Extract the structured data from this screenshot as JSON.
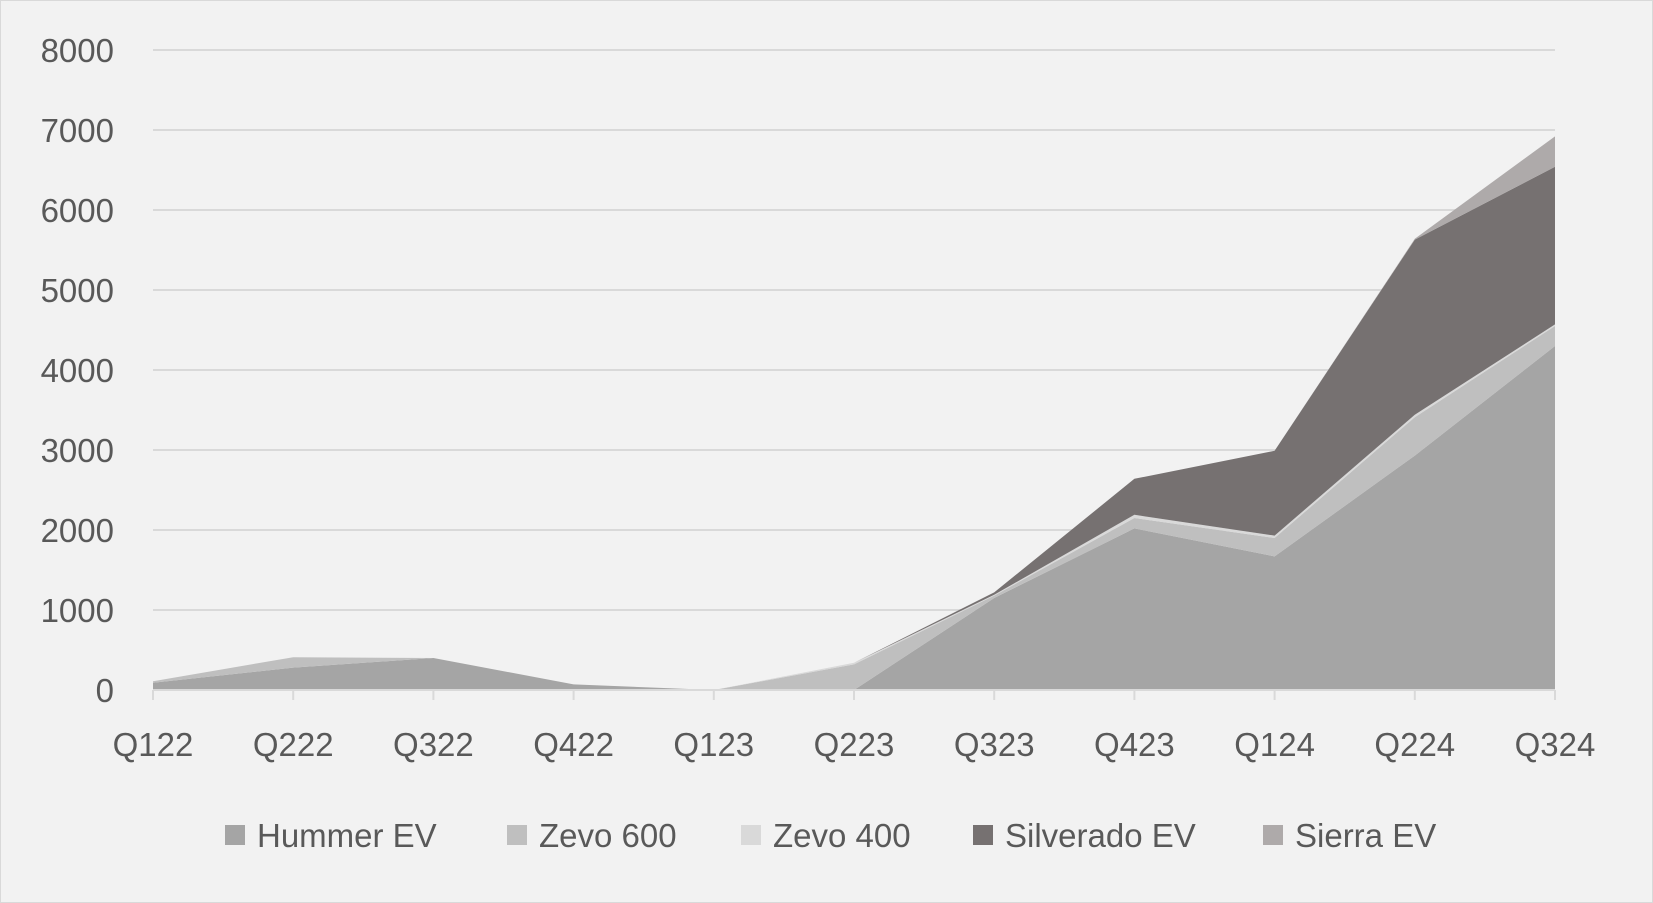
{
  "chart_data": {
    "type": "area",
    "stacked": true,
    "title": "",
    "xlabel": "",
    "ylabel": "",
    "categories": [
      "Q122",
      "Q222",
      "Q322",
      "Q422",
      "Q123",
      "Q223",
      "Q323",
      "Q423",
      "Q124",
      "Q224",
      "Q324"
    ],
    "ylim": [
      0,
      8000
    ],
    "yticks": [
      0,
      1000,
      2000,
      3000,
      4000,
      5000,
      6000,
      7000,
      8000
    ],
    "grid": true,
    "legend": "bottom",
    "series": [
      {
        "name": "Hummer EV",
        "color": "#a5a5a5",
        "values": [
          90,
          280,
          400,
          70,
          0,
          0,
          1150,
          2020,
          1670,
          2930,
          4300
        ]
      },
      {
        "name": "Zevo 600",
        "color": "#bfbfbf",
        "values": [
          20,
          130,
          0,
          0,
          0,
          320,
          30,
          130,
          230,
          480,
          250
        ]
      },
      {
        "name": "Zevo 400",
        "color": "#d9d9d9",
        "values": [
          0,
          0,
          0,
          0,
          0,
          20,
          10,
          40,
          30,
          30,
          20
        ]
      },
      {
        "name": "Silverado EV",
        "color": "#767171",
        "values": [
          0,
          0,
          0,
          0,
          0,
          0,
          30,
          450,
          1060,
          2190,
          1970
        ]
      },
      {
        "name": "Sierra EV",
        "color": "#aeaaaa",
        "values": [
          0,
          0,
          0,
          0,
          0,
          0,
          0,
          0,
          0,
          10,
          380
        ]
      }
    ]
  }
}
